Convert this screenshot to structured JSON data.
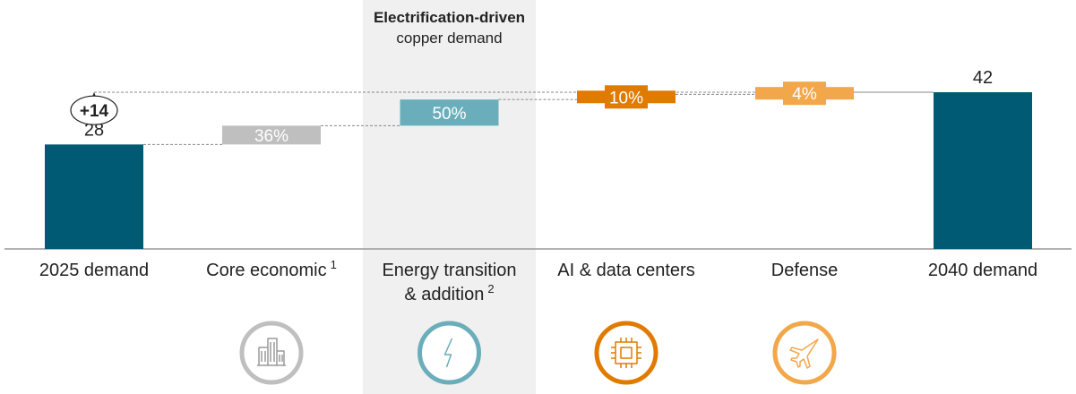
{
  "chart_data": {
    "type": "bar",
    "subtype": "waterfall",
    "unit_note": "",
    "highlight": {
      "title_line1": "Electrification-driven",
      "title_line2": "copper demand",
      "category_index": 2
    },
    "categories": [
      {
        "label_lines": [
          "2025 demand"
        ],
        "sup": "",
        "kind": "total",
        "start": 0,
        "end": 28,
        "value_label": "28",
        "color": "#005a73",
        "icon": ""
      },
      {
        "label_lines": [
          "Core economic"
        ],
        "sup": "1",
        "kind": "delta",
        "start": 28,
        "end": 33.04,
        "value_label": "36%",
        "color": "#bfbfbf",
        "icon": "buildings-icon"
      },
      {
        "label_lines": [
          "Energy transition",
          "& addition"
        ],
        "sup": "2",
        "kind": "delta",
        "start": 33.04,
        "end": 40.04,
        "value_label": "50%",
        "color": "#6aaebb",
        "icon": "lightning-icon"
      },
      {
        "label_lines": [
          "AI & data centers"
        ],
        "sup": "",
        "kind": "delta",
        "start": 40.04,
        "end": 41.44,
        "value_label": "10%",
        "color": "#e07b00",
        "icon": "chip-icon"
      },
      {
        "label_lines": [
          "Defense"
        ],
        "sup": "",
        "kind": "delta",
        "start": 41.44,
        "end": 42,
        "value_label": "4%",
        "color": "#f2a74a",
        "icon": "fighter-jet-icon"
      },
      {
        "label_lines": [
          "2040 demand"
        ],
        "sup": "",
        "kind": "total",
        "start": 0,
        "end": 42,
        "value_label": "42",
        "color": "#005a73",
        "icon": ""
      }
    ],
    "increase": {
      "label": "+14",
      "from": 28,
      "to": 42
    },
    "ylim": [
      0,
      42
    ],
    "grid": false,
    "legend": "none"
  }
}
